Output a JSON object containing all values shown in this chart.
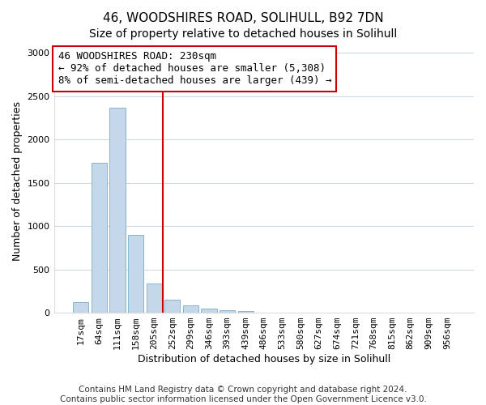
{
  "title1": "46, WOODSHIRES ROAD, SOLIHULL, B92 7DN",
  "title2": "Size of property relative to detached houses in Solihull",
  "xlabel": "Distribution of detached houses by size in Solihull",
  "ylabel": "Number of detached properties",
  "categories": [
    "17sqm",
    "64sqm",
    "111sqm",
    "158sqm",
    "205sqm",
    "252sqm",
    "299sqm",
    "346sqm",
    "393sqm",
    "439sqm",
    "486sqm",
    "533sqm",
    "580sqm",
    "627sqm",
    "674sqm",
    "721sqm",
    "768sqm",
    "815sqm",
    "862sqm",
    "909sqm",
    "956sqm"
  ],
  "values": [
    120,
    1730,
    2370,
    900,
    340,
    150,
    85,
    50,
    25,
    15,
    5,
    0,
    0,
    0,
    0,
    0,
    0,
    0,
    0,
    0,
    0
  ],
  "bar_color": "#c5d8ea",
  "bar_edge_color": "#8ab4d0",
  "highlight_color": "#cc0000",
  "annotation_text1": "46 WOODSHIRES ROAD: 230sqm",
  "annotation_text2": "← 92% of detached houses are smaller (5,308)",
  "annotation_text3": "8% of semi-detached houses are larger (439) →",
  "annotation_box_color": "#ffffff",
  "annotation_box_edge_color": "#cc0000",
  "vline_x_index": 4.5,
  "ylim": [
    0,
    3050
  ],
  "yticks": [
    0,
    500,
    1000,
    1500,
    2000,
    2500,
    3000
  ],
  "footnote": "Contains HM Land Registry data © Crown copyright and database right 2024.\nContains public sector information licensed under the Open Government Licence v3.0.",
  "bg_color": "#ffffff",
  "plot_bg_color": "#ffffff",
  "grid_color": "#d0d8e8",
  "title1_fontsize": 11,
  "title2_fontsize": 10,
  "xlabel_fontsize": 9,
  "ylabel_fontsize": 9,
  "tick_fontsize": 8,
  "annotation_fontsize": 9,
  "footnote_fontsize": 7.5
}
